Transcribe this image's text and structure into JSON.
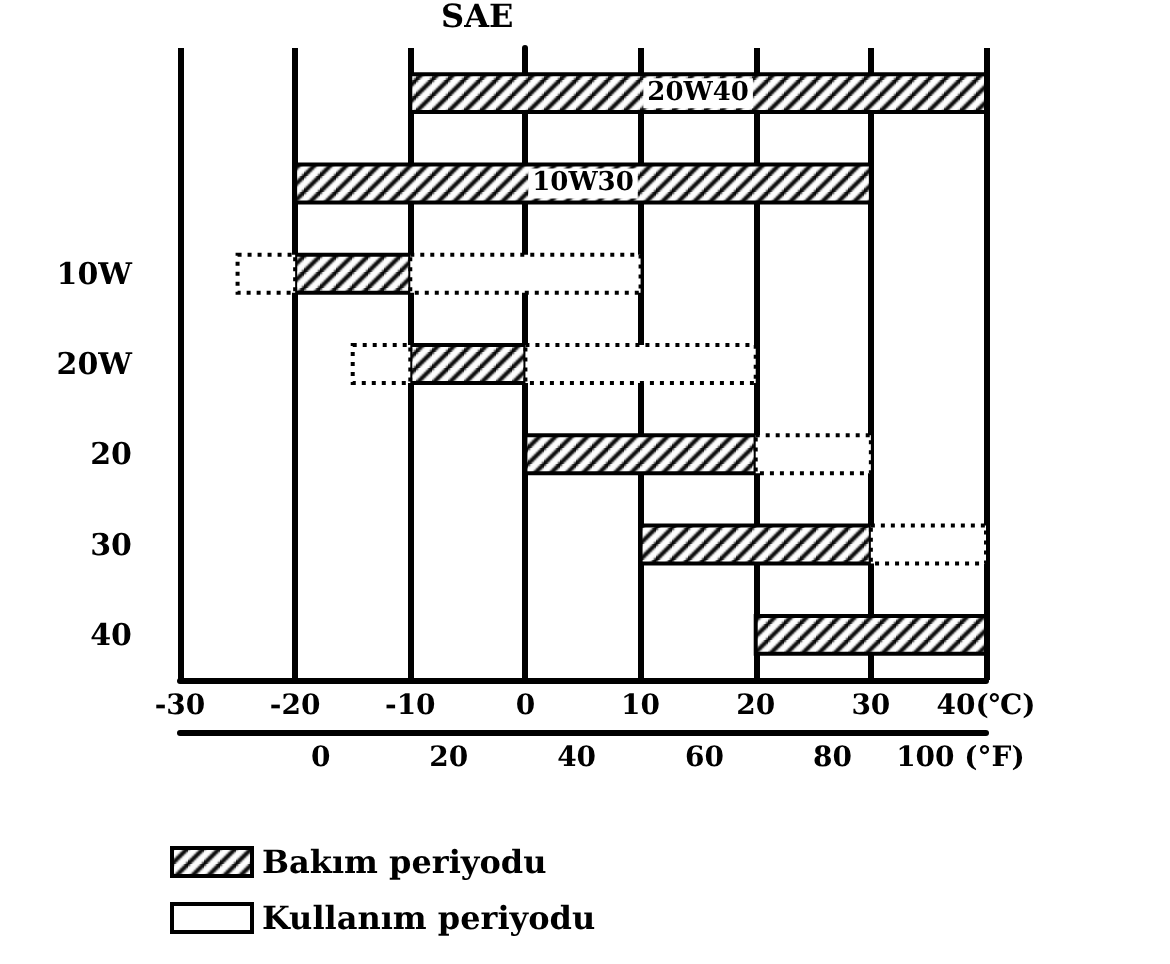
{
  "chart_data": {
    "type": "bar",
    "orientation": "horizontal",
    "ylabel": "SAE",
    "categories": [
      null,
      null,
      "10W",
      "20W",
      "20",
      "30",
      "40"
    ],
    "series": [
      {
        "name": "Bakım periyodu",
        "color": "#000000",
        "base": [
          -10,
          -20,
          -20,
          -10,
          0,
          10,
          20
        ],
        "values": [
          50,
          50,
          10,
          10,
          20,
          20,
          20
        ]
      },
      {
        "name": "Kullanım periyodu",
        "color": "#000000",
        "line_style": "dotted",
        "base": [
          null,
          null,
          -10,
          0,
          20,
          30,
          null
        ],
        "values": [
          null,
          null,
          20,
          20,
          10,
          10,
          null
        ]
      },
      {
        "color": "#000000",
        "line_style": "dotted",
        "base": [
          null,
          null,
          -25,
          -15,
          null,
          null,
          null
        ],
        "values": [
          null,
          null,
          5,
          5,
          null,
          null,
          null
        ]
      }
    ],
    "xlim": [
      -30,
      40
    ],
    "xticks": [
      -30,
      -20,
      -10,
      0,
      10,
      20,
      30,
      {
        "value": 40,
        "label": "40(℃)"
      }
    ],
    "x2lim": [
      -22,
      104
    ],
    "x2ticks": [
      0,
      20,
      40,
      60,
      80,
      {
        "value": 100,
        "label": "100 (°F)"
      }
    ],
    "annotations": [
      "20W40",
      "10W30"
    ],
    "grid": "x",
    "legend": "bottom"
  }
}
